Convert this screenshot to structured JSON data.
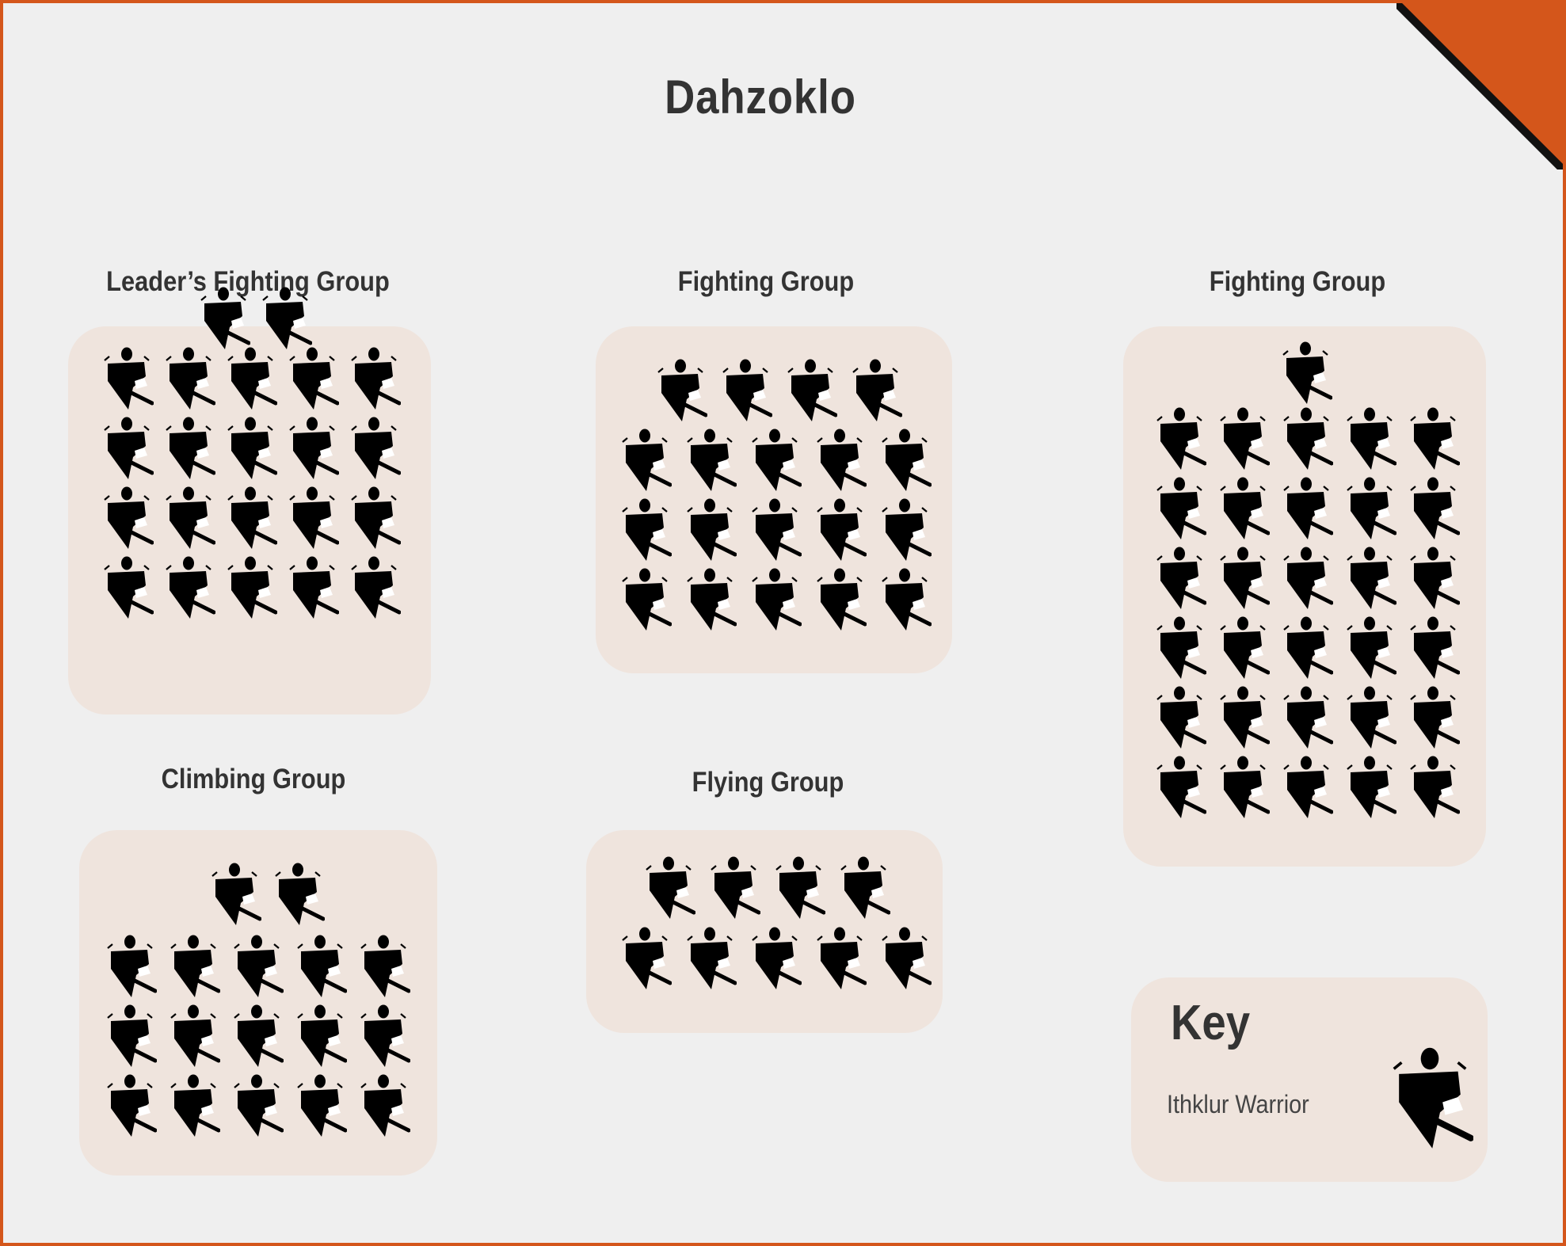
{
  "title": "Dahzoklo",
  "colors": {
    "border": "#d4561b",
    "background": "#efefef",
    "box": "#efe4dd",
    "text": "#333333",
    "figure": "#000000"
  },
  "groups": [
    {
      "label": "Leader’s Fighting Group",
      "icon": "ithklur-warrior-icon",
      "rows": [
        2,
        5,
        5,
        5,
        5
      ]
    },
    {
      "label": "Fighting Group",
      "icon": "ithklur-warrior-icon",
      "rows": [
        4,
        5,
        5,
        5
      ]
    },
    {
      "label": "Fighting Group",
      "icon": "ithklur-warrior-icon",
      "rows": [
        1,
        5,
        5,
        5,
        5,
        5,
        5
      ]
    },
    {
      "label": "Climbing Group",
      "icon": "ithklur-warrior-icon",
      "rows": [
        2,
        5,
        5,
        5
      ]
    },
    {
      "label": "Flying Group",
      "icon": "ithklur-warrior-icon",
      "rows": [
        4,
        5
      ]
    }
  ],
  "key": {
    "title": "Key",
    "items": [
      {
        "label": "Ithklur Warrior",
        "icon": "ithklur-warrior-icon"
      }
    ]
  }
}
